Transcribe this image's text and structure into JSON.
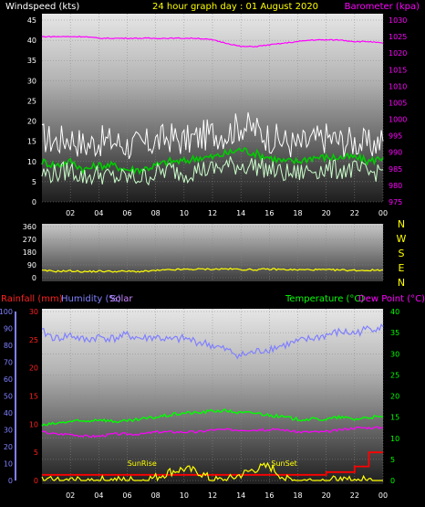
{
  "header": {
    "left_title": "Windspeed (kts)",
    "center_title": "24 hour graph day : 01 August 2020",
    "right_title": "Barometer (kpa)"
  },
  "colors": {
    "wind": "#ffffff",
    "avg_wind": "#00cc00",
    "gust_band": "#ccffcc",
    "barometer": "#ff00ff",
    "direction": "#ffff00",
    "humidity": "#8080ff",
    "temperature": "#00ff00",
    "dewpoint": "#ff00ff",
    "rainfall": "#ff0000",
    "solar": "#ffff00",
    "grid": "#888888",
    "axis_text": "#ffffff"
  },
  "chart_data": [
    {
      "type": "line",
      "title": "",
      "xlabel": "",
      "ylabel": "Windspeed (kts)",
      "y2label": "Barometer (kpa)",
      "x_ticks": [
        "02",
        "04",
        "06",
        "08",
        "10",
        "12",
        "14",
        "16",
        "18",
        "20",
        "22",
        "00"
      ],
      "y_ticks": [
        "0",
        "5",
        "10",
        "15",
        "20",
        "25",
        "30",
        "35",
        "40",
        "45"
      ],
      "ylim": [
        0,
        45
      ],
      "y2_ticks": [
        "975",
        "980",
        "985",
        "990",
        "995",
        "1000",
        "1005",
        "1010",
        "1015",
        "1020",
        "1025",
        "1030"
      ],
      "y2lim": [
        975,
        1030
      ],
      "x": [
        0,
        1,
        2,
        3,
        4,
        5,
        6,
        7,
        8,
        9,
        10,
        11,
        12,
        13,
        14,
        15,
        16,
        17,
        18,
        19,
        20,
        21,
        22,
        23,
        24
      ],
      "series": [
        {
          "name": "wind",
          "axis": "y",
          "values": [
            16,
            15,
            16,
            14,
            15,
            15,
            14,
            14,
            15,
            16,
            15,
            16,
            17,
            17,
            19,
            18,
            16,
            15,
            14,
            15,
            16,
            15,
            15,
            14,
            15
          ]
        },
        {
          "name": "avg_wind",
          "axis": "y",
          "values": [
            10,
            9,
            10,
            8,
            9,
            9,
            8,
            8,
            9,
            10,
            10,
            11,
            11,
            12,
            13,
            12,
            11,
            10,
            10,
            11,
            11,
            11,
            11,
            10,
            11
          ]
        },
        {
          "name": "gust_band",
          "axis": "y",
          "values": [
            7,
            7,
            8,
            6,
            7,
            6,
            6,
            6,
            7,
            8,
            7,
            8,
            8,
            9,
            9,
            9,
            8,
            7,
            7,
            8,
            8,
            8,
            8,
            7,
            8
          ]
        },
        {
          "name": "barometer",
          "axis": "y2",
          "values": [
            1025,
            1025,
            1025,
            1025,
            1024.5,
            1024.5,
            1024.5,
            1024.5,
            1024.5,
            1024.5,
            1024.5,
            1024.5,
            1024,
            1023,
            1022,
            1022,
            1022.5,
            1023,
            1023.5,
            1024,
            1024,
            1024,
            1023.5,
            1023.5,
            1023
          ]
        }
      ]
    },
    {
      "type": "line",
      "title": "",
      "x_ticks": [
        "02",
        "04",
        "06",
        "08",
        "10",
        "12",
        "14",
        "16",
        "18",
        "20",
        "22",
        "00"
      ],
      "y_ticks": [
        "0",
        "90",
        "180",
        "270",
        "360"
      ],
      "ylim": [
        0,
        360
      ],
      "compass": [
        "N",
        "W",
        "S",
        "E",
        "N"
      ],
      "x": [
        0,
        1,
        2,
        3,
        4,
        5,
        6,
        7,
        8,
        9,
        10,
        11,
        12,
        13,
        14,
        15,
        16,
        17,
        18,
        19,
        20,
        21,
        22,
        23,
        24
      ],
      "series": [
        {
          "name": "direction",
          "values": [
            50,
            45,
            48,
            42,
            46,
            44,
            45,
            43,
            50,
            55,
            58,
            60,
            60,
            62,
            58,
            56,
            60,
            58,
            55,
            57,
            55,
            54,
            52,
            52,
            55
          ]
        }
      ]
    },
    {
      "type": "line",
      "title": "",
      "legend": [
        "Rainfall (mm)",
        "Humidity (%)",
        "Solar",
        "Temperature (°C)",
        "Dew Point (°C)"
      ],
      "x_ticks": [
        "02",
        "04",
        "06",
        "08",
        "10",
        "12",
        "14",
        "16",
        "18",
        "20",
        "22",
        "00"
      ],
      "humidity_ticks": [
        "0",
        "10",
        "20",
        "30",
        "40",
        "50",
        "60",
        "70",
        "80",
        "90",
        "100"
      ],
      "humidity_lim": [
        0,
        100
      ],
      "rain_ticks": [
        "0",
        "5",
        "10",
        "15",
        "20",
        "25",
        "30"
      ],
      "rain_lim": [
        0,
        30
      ],
      "temp_ticks": [
        "0",
        "5",
        "10",
        "15",
        "20",
        "25",
        "30",
        "35",
        "40"
      ],
      "temp_lim": [
        0,
        40
      ],
      "annotations": [
        {
          "label": "SunRise",
          "x": 7.3
        },
        {
          "label": "SunSet",
          "x": 17.3
        }
      ],
      "x": [
        0,
        1,
        2,
        3,
        4,
        5,
        6,
        7,
        8,
        9,
        10,
        11,
        12,
        13,
        14,
        15,
        16,
        17,
        18,
        19,
        20,
        21,
        22,
        23,
        24
      ],
      "series": [
        {
          "name": "Humidity (%)",
          "axis": "humidity",
          "values": [
            88,
            84,
            86,
            83,
            85,
            84,
            86,
            84,
            85,
            83,
            84,
            82,
            80,
            77,
            74,
            76,
            78,
            80,
            82,
            84,
            86,
            88,
            87,
            90,
            91
          ]
        },
        {
          "name": "Temperature (°C)",
          "axis": "temp",
          "values": [
            13,
            13.5,
            14,
            14,
            14.5,
            14,
            14,
            14.5,
            15,
            15.5,
            16,
            16,
            16.5,
            16.5,
            16,
            16,
            15.5,
            15,
            14.5,
            14.5,
            14.5,
            15,
            14.5,
            15,
            15
          ]
        },
        {
          "name": "Dew Point (°C)",
          "axis": "temp",
          "values": [
            11.5,
            11,
            11,
            10.5,
            10.5,
            11,
            11,
            11,
            11.5,
            11.5,
            11.5,
            11.5,
            12,
            12,
            12,
            12,
            12,
            12,
            11.5,
            11.5,
            11.5,
            12,
            12.5,
            12.5,
            12.5
          ]
        },
        {
          "name": "Rainfall (mm)",
          "axis": "rain",
          "values": [
            1,
            1,
            1,
            1,
            1,
            1,
            1,
            1,
            1,
            1,
            1,
            1,
            1,
            1,
            1,
            1,
            1,
            1,
            1,
            1,
            1.5,
            1.5,
            2.5,
            5,
            5
          ]
        },
        {
          "name": "Solar",
          "axis": "rain",
          "values": [
            0,
            0,
            0,
            0,
            0,
            0,
            0,
            0,
            0.5,
            1.5,
            2,
            1.5,
            0,
            0,
            1,
            2,
            2.5,
            0.5,
            0,
            0,
            0,
            0,
            0,
            0,
            0
          ]
        }
      ]
    }
  ]
}
